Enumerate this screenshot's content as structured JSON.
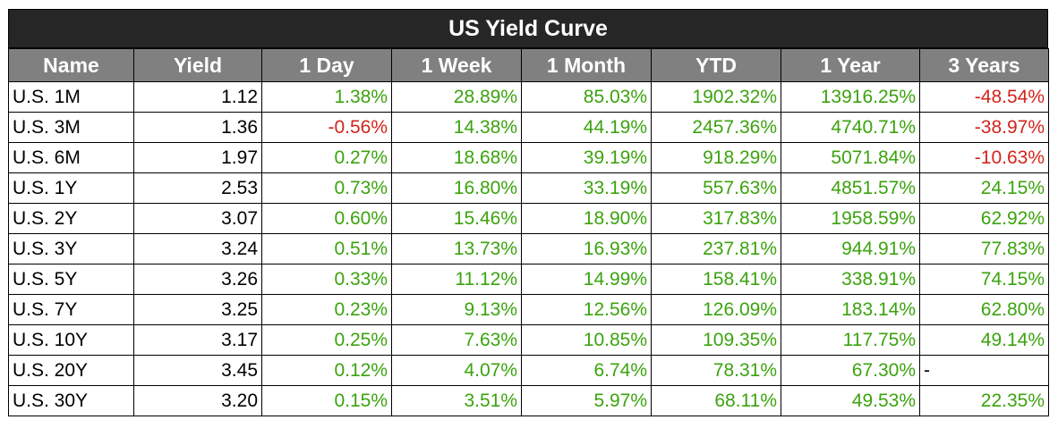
{
  "title": "US Yield Curve",
  "headers": [
    "Name",
    "Yield",
    "1 Day",
    "1 Week",
    "1 Month",
    "YTD",
    "1 Year",
    "3 Years"
  ],
  "colors": {
    "positive": "#3ba30e",
    "negative": "#d3241b",
    "title_bg": "#262626",
    "header_bg": "#808080"
  },
  "rows": [
    [
      "U.S. 1M",
      "1.12",
      "1.38%",
      "28.89%",
      "85.03%",
      "1902.32%",
      "13916.25%",
      "-48.54%"
    ],
    [
      "U.S. 3M",
      "1.36",
      "-0.56%",
      "14.38%",
      "44.19%",
      "2457.36%",
      "4740.71%",
      "-38.97%"
    ],
    [
      "U.S. 6M",
      "1.97",
      "0.27%",
      "18.68%",
      "39.19%",
      "918.29%",
      "5071.84%",
      "-10.63%"
    ],
    [
      "U.S. 1Y",
      "2.53",
      "0.73%",
      "16.80%",
      "33.19%",
      "557.63%",
      "4851.57%",
      "24.15%"
    ],
    [
      "U.S. 2Y",
      "3.07",
      "0.60%",
      "15.46%",
      "18.90%",
      "317.83%",
      "1958.59%",
      "62.92%"
    ],
    [
      "U.S. 3Y",
      "3.24",
      "0.51%",
      "13.73%",
      "16.93%",
      "237.81%",
      "944.91%",
      "77.83%"
    ],
    [
      "U.S. 5Y",
      "3.26",
      "0.33%",
      "11.12%",
      "14.99%",
      "158.41%",
      "338.91%",
      "74.15%"
    ],
    [
      "U.S. 7Y",
      "3.25",
      "0.23%",
      "9.13%",
      "12.56%",
      "126.09%",
      "183.14%",
      "62.80%"
    ],
    [
      "U.S. 10Y",
      "3.17",
      "0.25%",
      "7.63%",
      "10.85%",
      "109.35%",
      "117.75%",
      "49.14%"
    ],
    [
      "U.S. 20Y",
      "3.45",
      "0.12%",
      "4.07%",
      "6.74%",
      "78.31%",
      "67.30%",
      "-"
    ],
    [
      "U.S. 30Y",
      "3.20",
      "0.15%",
      "3.51%",
      "5.97%",
      "68.11%",
      "49.53%",
      "22.35%"
    ]
  ]
}
